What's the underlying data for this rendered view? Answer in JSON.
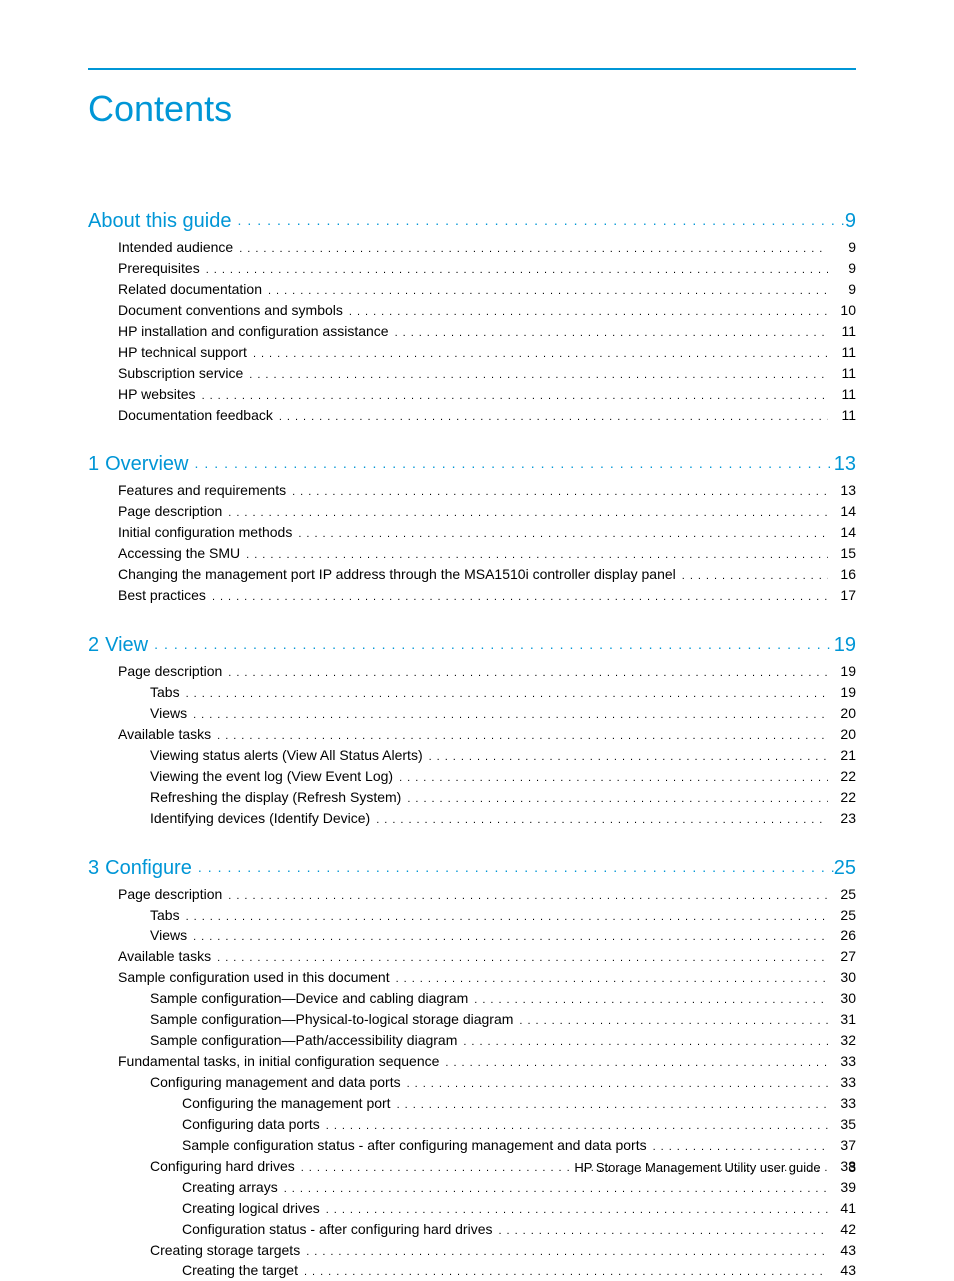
{
  "colors": {
    "accent": "#0096d6",
    "text": "#000000",
    "background": "#ffffff"
  },
  "typography": {
    "title_fontsize": 36,
    "section_fontsize": 20,
    "entry_fontsize": 14,
    "footer_fontsize": 13
  },
  "page_title": "Contents",
  "footer": {
    "text": "HP Storage Management Utility user guide",
    "page_number": "3"
  },
  "sections": [
    {
      "number": "",
      "title": "About this guide",
      "page": "9",
      "entries": [
        {
          "label": "Intended audience",
          "page": "9",
          "level": 1
        },
        {
          "label": "Prerequisites",
          "page": "9",
          "level": 1
        },
        {
          "label": "Related documentation",
          "page": "9",
          "level": 1
        },
        {
          "label": "Document conventions and symbols",
          "page": "10",
          "level": 1
        },
        {
          "label": "HP installation and configuration assistance",
          "page": "11",
          "level": 1
        },
        {
          "label": "HP technical support",
          "page": "11",
          "level": 1
        },
        {
          "label": "Subscription service",
          "page": "11",
          "level": 1
        },
        {
          "label": "HP websites",
          "page": "11",
          "level": 1
        },
        {
          "label": "Documentation feedback",
          "page": "11",
          "level": 1
        }
      ]
    },
    {
      "number": "1",
      "title": "Overview",
      "page": "13",
      "entries": [
        {
          "label": "Features and requirements",
          "page": "13",
          "level": 1
        },
        {
          "label": "Page description",
          "page": "14",
          "level": 1
        },
        {
          "label": "Initial configuration methods",
          "page": "14",
          "level": 1
        },
        {
          "label": "Accessing the SMU",
          "page": "15",
          "level": 1
        },
        {
          "label": "Changing the management port IP address through the MSA1510i controller display panel",
          "page": "16",
          "level": 1
        },
        {
          "label": "Best practices",
          "page": "17",
          "level": 1
        }
      ]
    },
    {
      "number": "2",
      "title": "View",
      "page": "19",
      "entries": [
        {
          "label": "Page description",
          "page": "19",
          "level": 1
        },
        {
          "label": "Tabs",
          "page": "19",
          "level": 2
        },
        {
          "label": "Views",
          "page": "20",
          "level": 2
        },
        {
          "label": "Available tasks",
          "page": "20",
          "level": 1
        },
        {
          "label": "Viewing status alerts (View All Status Alerts)",
          "page": "21",
          "level": 2
        },
        {
          "label": "Viewing the event log (View Event Log)",
          "page": "22",
          "level": 2
        },
        {
          "label": "Refreshing the display (Refresh System)",
          "page": "22",
          "level": 2
        },
        {
          "label": "Identifying devices (Identify Device)",
          "page": "23",
          "level": 2
        }
      ]
    },
    {
      "number": "3",
      "title": "Configure",
      "page": "25",
      "entries": [
        {
          "label": "Page description",
          "page": "25",
          "level": 1
        },
        {
          "label": "Tabs",
          "page": "25",
          "level": 2
        },
        {
          "label": "Views",
          "page": "26",
          "level": 2
        },
        {
          "label": "Available tasks",
          "page": "27",
          "level": 1
        },
        {
          "label": "Sample configuration used in this document",
          "page": "30",
          "level": 1
        },
        {
          "label": "Sample configuration—Device and cabling diagram",
          "page": "30",
          "level": 2
        },
        {
          "label": "Sample configuration—Physical-to-logical storage diagram",
          "page": "31",
          "level": 2
        },
        {
          "label": "Sample configuration—Path/accessibility diagram",
          "page": "32",
          "level": 2
        },
        {
          "label": "Fundamental tasks, in initial configuration sequence",
          "page": "33",
          "level": 1
        },
        {
          "label": "Configuring management and data ports",
          "page": "33",
          "level": 2
        },
        {
          "label": "Configuring the management port",
          "page": "33",
          "level": 3
        },
        {
          "label": "Configuring data ports",
          "page": "35",
          "level": 3
        },
        {
          "label": "Sample configuration status - after configuring management and data ports",
          "page": "37",
          "level": 3
        },
        {
          "label": "Configuring hard drives",
          "page": "38",
          "level": 2
        },
        {
          "label": "Creating arrays",
          "page": "39",
          "level": 3
        },
        {
          "label": "Creating logical drives",
          "page": "41",
          "level": 3
        },
        {
          "label": "Configuration status - after configuring hard drives",
          "page": "42",
          "level": 3
        },
        {
          "label": "Creating storage targets",
          "page": "43",
          "level": 2
        },
        {
          "label": "Creating the target",
          "page": "43",
          "level": 3
        }
      ]
    }
  ]
}
